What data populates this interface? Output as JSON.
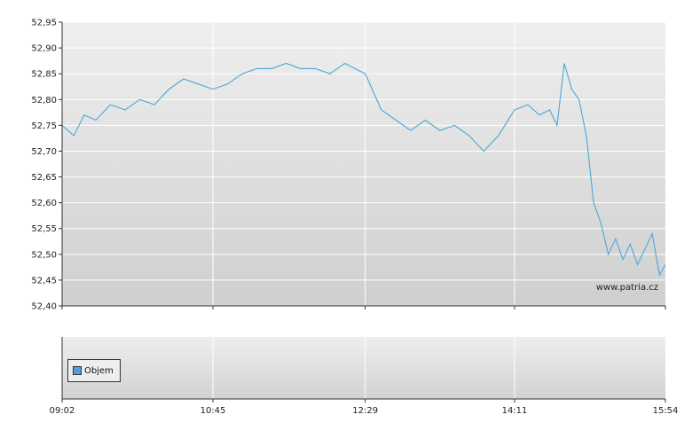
{
  "chart_data": {
    "type": "line",
    "xlabel": "",
    "ylabel": "",
    "ylim": [
      52.4,
      52.95
    ],
    "y_ticks": [
      "52,95",
      "52,90",
      "52,85",
      "52,80",
      "52,75",
      "52,70",
      "52,65",
      "52,60",
      "52,55",
      "52,50",
      "52,45",
      "52,40"
    ],
    "x_ticks": [
      "09:02",
      "10:45",
      "12:29",
      "14:11",
      "15:54"
    ],
    "xlim": [
      "09:02",
      "15:54"
    ],
    "grid": true,
    "line_color": "#4aa8d8",
    "x": [
      "09:02",
      "09:10",
      "09:17",
      "09:25",
      "09:35",
      "09:45",
      "09:55",
      "10:05",
      "10:15",
      "10:25",
      "10:35",
      "10:45",
      "10:55",
      "11:05",
      "11:15",
      "11:25",
      "11:35",
      "11:45",
      "11:55",
      "12:05",
      "12:15",
      "12:29",
      "12:40",
      "12:50",
      "13:00",
      "13:10",
      "13:20",
      "13:30",
      "13:40",
      "13:50",
      "14:00",
      "14:11",
      "14:20",
      "14:28",
      "14:35",
      "14:40",
      "14:45",
      "14:50",
      "14:55",
      "15:00",
      "15:05",
      "15:10",
      "15:15",
      "15:20",
      "15:25",
      "15:30",
      "15:35",
      "15:40",
      "15:45",
      "15:50",
      "15:54"
    ],
    "values": [
      52.75,
      52.73,
      52.77,
      52.76,
      52.79,
      52.78,
      52.8,
      52.79,
      52.82,
      52.84,
      52.83,
      52.82,
      52.83,
      52.85,
      52.86,
      52.86,
      52.87,
      52.86,
      52.86,
      52.85,
      52.87,
      52.85,
      52.78,
      52.76,
      52.74,
      52.76,
      52.74,
      52.75,
      52.73,
      52.7,
      52.73,
      52.78,
      52.79,
      52.77,
      52.78,
      52.75,
      52.87,
      52.82,
      52.8,
      52.73,
      52.6,
      52.56,
      52.5,
      52.53,
      52.49,
      52.52,
      52.48,
      52.51,
      52.54,
      52.46,
      52.48
    ],
    "watermark": "www.patria.cz",
    "volume_panel": {
      "legend_label": "Objem"
    }
  }
}
